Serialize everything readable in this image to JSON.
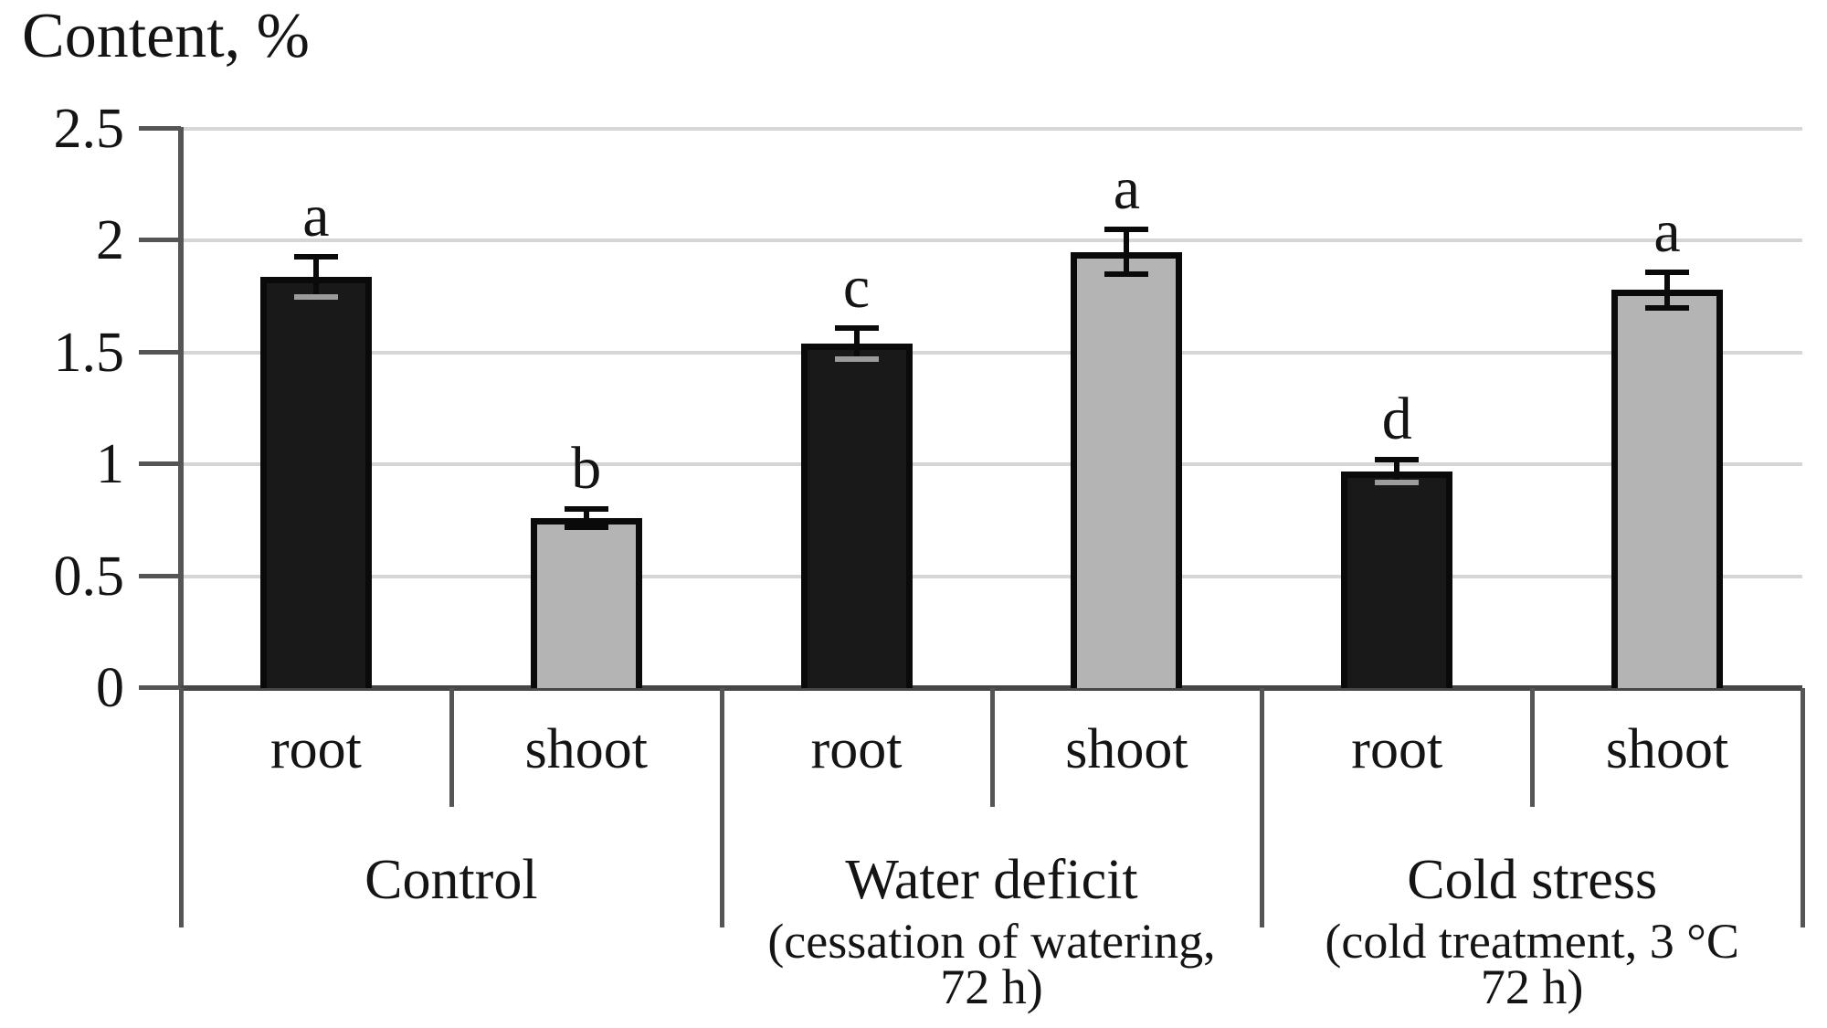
{
  "title": "Content, %",
  "colors": {
    "root_bar": "#191919",
    "shoot_bar": "#b4b4b4",
    "bar_border": "#0a0a0a",
    "error_bar": "#0a0a0a",
    "error_bar_cap_on_black": "#9c9c9c",
    "gridline": "#d6d6d6",
    "axis": "#555555",
    "baseline": "#474747",
    "text": "#141414",
    "background": "#ffffff"
  },
  "chart_data": {
    "type": "bar",
    "title": "Content, %",
    "xlabel": "",
    "ylabel": "Content, %",
    "ylim": [
      0,
      2.5
    ],
    "yticks": [
      0,
      0.5,
      1,
      1.5,
      2,
      2.5
    ],
    "ytick_labels": [
      "0",
      "0.5",
      "1",
      "1.5",
      "2",
      "2.5"
    ],
    "grid": true,
    "legend_position": "none",
    "bar_color_legend": {
      "root": "black",
      "shoot": "gray"
    },
    "bars": [
      {
        "group": "Control",
        "tissue": "root",
        "value": 1.84,
        "error": 0.09,
        "letter": "a",
        "color": "black"
      },
      {
        "group": "Control",
        "tissue": "shoot",
        "value": 0.76,
        "error": 0.04,
        "letter": "b",
        "color": "gray"
      },
      {
        "group": "Water deficit",
        "tissue": "root",
        "value": 1.54,
        "error": 0.07,
        "letter": "c",
        "color": "black"
      },
      {
        "group": "Water deficit",
        "tissue": "shoot",
        "value": 1.95,
        "error": 0.1,
        "letter": "a",
        "color": "gray"
      },
      {
        "group": "Cold stress",
        "tissue": "root",
        "value": 0.97,
        "error": 0.05,
        "letter": "d",
        "color": "black"
      },
      {
        "group": "Cold stress",
        "tissue": "shoot",
        "value": 1.78,
        "error": 0.08,
        "letter": "a",
        "color": "gray"
      }
    ],
    "groups": [
      {
        "label": "Control",
        "sublabels": []
      },
      {
        "label": "Water deficit",
        "sublabels": [
          "(cessation of watering,",
          "72  h)"
        ]
      },
      {
        "label": "Cold stress",
        "sublabels": [
          "(cold treatment, 3 °C",
          "72  h)"
        ]
      }
    ]
  }
}
